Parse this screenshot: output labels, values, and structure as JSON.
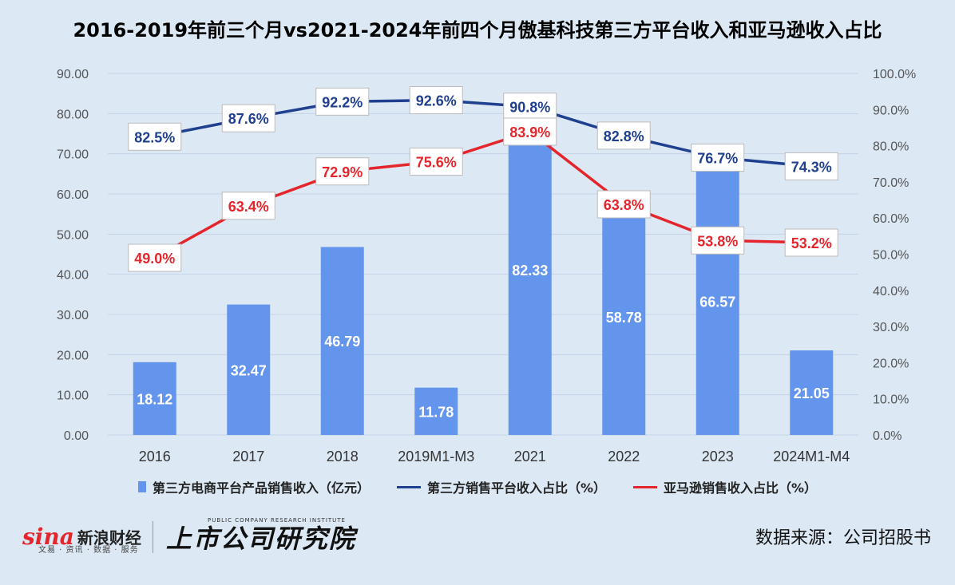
{
  "title": "2016-2019年前三个月vs2021-2024年前四个月傲基科技第三方平台收入和亚马逊收入占比",
  "legend": {
    "bar": "第三方电商平台产品销售收入（亿元）",
    "line_blue": "第三方销售平台收入占比（%）",
    "line_red": "亚马逊销售收入占比（%）"
  },
  "footer": {
    "sina_logo": "sina",
    "sina_cn": "新浪财经",
    "sina_sub": "文易 · 资讯 · 数据 · 服务",
    "institute_cn": "上市公司研究院",
    "institute_en": "PUBLIC COMPANY RESEARCH INSTITUTE",
    "source": "数据来源：公司招股书"
  },
  "colors": {
    "bar": "#6495ed",
    "line_blue": "#1f3f8f",
    "line_red": "#e4262c",
    "background": "#dce9f5",
    "grid": "#c3d3e6"
  },
  "chart_data": {
    "type": "bar+line",
    "categories": [
      "2016",
      "2017",
      "2018",
      "2019M1-M3",
      "2021",
      "2022",
      "2023",
      "2024M1-M4"
    ],
    "series": [
      {
        "name": "第三方电商平台产品销售收入（亿元）",
        "type": "bar",
        "axis": "left",
        "values": [
          18.12,
          32.47,
          46.79,
          11.78,
          82.33,
          58.78,
          66.57,
          21.05
        ],
        "labels": [
          "18.12",
          "32.47",
          "46.79",
          "11.78",
          "82.33",
          "58.78",
          "66.57",
          "21.05"
        ]
      },
      {
        "name": "第三方销售平台收入占比（%）",
        "type": "line",
        "axis": "right",
        "values": [
          82.5,
          87.6,
          92.2,
          92.6,
          90.8,
          82.8,
          76.7,
          74.3
        ],
        "labels": [
          "82.5%",
          "87.6%",
          "92.2%",
          "92.6%",
          "90.8%",
          "82.8%",
          "76.7%",
          "74.3%"
        ]
      },
      {
        "name": "亚马逊销售收入占比（%）",
        "type": "line",
        "axis": "right",
        "values": [
          49.0,
          63.4,
          72.9,
          75.6,
          83.9,
          63.8,
          53.8,
          53.2
        ],
        "labels": [
          "49.0%",
          "63.4%",
          "72.9%",
          "75.6%",
          "83.9%",
          "63.8%",
          "53.8%",
          "53.2%"
        ]
      }
    ],
    "left_axis": {
      "min": 0,
      "max": 90,
      "ticks": [
        "0.00",
        "10.00",
        "20.00",
        "30.00",
        "40.00",
        "50.00",
        "60.00",
        "70.00",
        "80.00",
        "90.00"
      ]
    },
    "right_axis": {
      "min": 0,
      "max": 100,
      "ticks": [
        "0.0%",
        "10.0%",
        "20.0%",
        "30.0%",
        "40.0%",
        "50.0%",
        "60.0%",
        "70.0%",
        "80.0%",
        "90.0%",
        "100.0%"
      ]
    },
    "grid": true,
    "legend_position": "bottom"
  }
}
